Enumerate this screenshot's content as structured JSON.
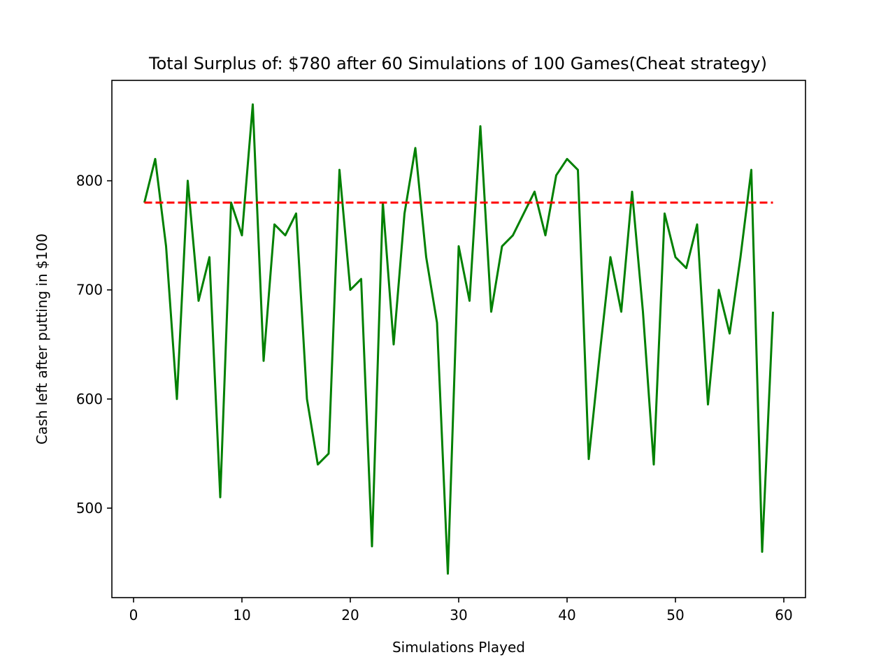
{
  "chart_data": {
    "type": "line",
    "title": "Total Surplus of: $780 after 60 Simulations of 100 Games(Cheat strategy)",
    "xlabel": "Simulations Played",
    "ylabel": "Cash left after putting in $100",
    "xlim": [
      -2,
      62
    ],
    "ylim": [
      418,
      892
    ],
    "xticks": [
      0,
      10,
      20,
      30,
      40,
      50,
      60
    ],
    "yticks": [
      500,
      600,
      700,
      800
    ],
    "grid": false,
    "legend": "none",
    "series": [
      {
        "style": "solid",
        "color": "#008000",
        "x": [
          1,
          2,
          3,
          4,
          5,
          6,
          7,
          8,
          9,
          10,
          11,
          12,
          13,
          14,
          15,
          16,
          17,
          18,
          19,
          20,
          21,
          22,
          23,
          24,
          25,
          26,
          27,
          28,
          29,
          30,
          31,
          32,
          33,
          34,
          35,
          36,
          37,
          38,
          39,
          40,
          41,
          42,
          43,
          44,
          45,
          46,
          47,
          48,
          49,
          50,
          51,
          52,
          53,
          54,
          55,
          56,
          57,
          58,
          59
        ],
        "y": [
          780,
          820,
          740,
          600,
          800,
          690,
          730,
          510,
          780,
          750,
          870,
          635,
          760,
          750,
          770,
          600,
          540,
          550,
          810,
          700,
          710,
          465,
          780,
          650,
          770,
          830,
          730,
          670,
          440,
          740,
          690,
          850,
          680,
          740,
          750,
          770,
          790,
          750,
          805,
          820,
          810,
          545,
          640,
          730,
          680,
          790,
          680,
          540,
          770,
          730,
          720,
          760,
          595,
          700,
          660,
          730,
          810,
          460,
          680
        ]
      },
      {
        "style": "dashed",
        "color": "#ff0000",
        "x": [
          1,
          59
        ],
        "y": [
          780,
          780
        ]
      }
    ]
  }
}
